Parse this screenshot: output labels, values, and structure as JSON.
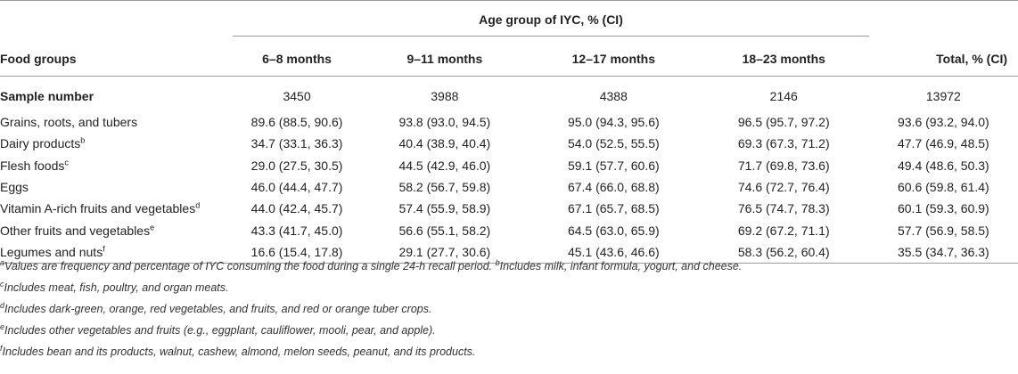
{
  "table": {
    "group_header": "Age group of IYC, % (CI)",
    "columns": [
      "Food groups",
      "6–8 months",
      "9–11 months",
      "12–17 months",
      "18–23 months",
      "Total, % (CI)"
    ],
    "sample_row": {
      "label": "Sample number",
      "values": [
        "3450",
        "3988",
        "4388",
        "2146",
        "13972"
      ]
    },
    "rows": [
      {
        "label": "Grains, roots, and tubers",
        "sup": "",
        "values": [
          "89.6 (88.5, 90.6)",
          "93.8 (93.0, 94.5)",
          "95.0 (94.3, 95.6)",
          "96.5 (95.7, 97.2)",
          "93.6 (93.2, 94.0)"
        ]
      },
      {
        "label": "Dairy products",
        "sup": "b",
        "values": [
          "34.7 (33.1, 36.3)",
          "40.4 (38.9, 40.4)",
          "54.0 (52.5, 55.5)",
          "69.3 (67.3, 71.2)",
          "47.7 (46.9, 48.5)"
        ]
      },
      {
        "label": "Flesh foods",
        "sup": "c",
        "values": [
          "29.0 (27.5, 30.5)",
          "44.5 (42.9, 46.0)",
          "59.1 (57.7, 60.6)",
          "71.7 (69.8, 73.6)",
          "49.4 (48.6, 50.3)"
        ]
      },
      {
        "label": "Eggs",
        "sup": "",
        "values": [
          "46.0 (44.4, 47.7)",
          "58.2 (56.7, 59.8)",
          "67.4 (66.0, 68.8)",
          "74.6 (72.7, 76.4)",
          "60.6 (59.8, 61.4)"
        ]
      },
      {
        "label": "Vitamin A-rich fruits and vegetables",
        "sup": "d",
        "values": [
          "44.0 (42.4, 45.7)",
          "57.4 (55.9, 58.9)",
          "67.1 (65.7, 68.5)",
          "76.5 (74.7, 78.3)",
          "60.1 (59.3, 60.9)"
        ]
      },
      {
        "label": "Other fruits and vegetables",
        "sup": "e",
        "values": [
          "43.3 (41.7, 45.0)",
          "56.6 (55.1, 58.2)",
          "64.5 (63.0, 65.9)",
          "69.2 (67.2, 71.1)",
          "57.7 (56.9, 58.5)"
        ]
      },
      {
        "label": "Legumes and nuts",
        "sup": "f",
        "values": [
          "16.6 (15.4, 17.8)",
          "29.1 (27.7, 30.6)",
          "45.1 (43.6, 46.6)",
          "58.3 (56.2, 60.4)",
          "35.5 (34.7, 36.3)"
        ]
      }
    ]
  },
  "footnotes": [
    {
      "mark": "a",
      "text": "Values are frequency and percentage of IYC consuming the food during a single 24-h recall period. ",
      "mark2": "b",
      "text2": "Includes milk, infant formula, yogurt, and cheese."
    },
    {
      "mark": "c",
      "text": "Includes meat, fish, poultry, and organ meats."
    },
    {
      "mark": "d",
      "text": "Includes dark-green, orange, red vegetables, and fruits, and red or orange tuber crops."
    },
    {
      "mark": "e",
      "text": "Includes other vegetables and fruits (e.g., eggplant, cauliflower, mooli, pear, and apple)."
    },
    {
      "mark": "f",
      "text": "Includes bean and its products, walnut, cashew, almond, melon seeds, peanut, and its products."
    }
  ]
}
